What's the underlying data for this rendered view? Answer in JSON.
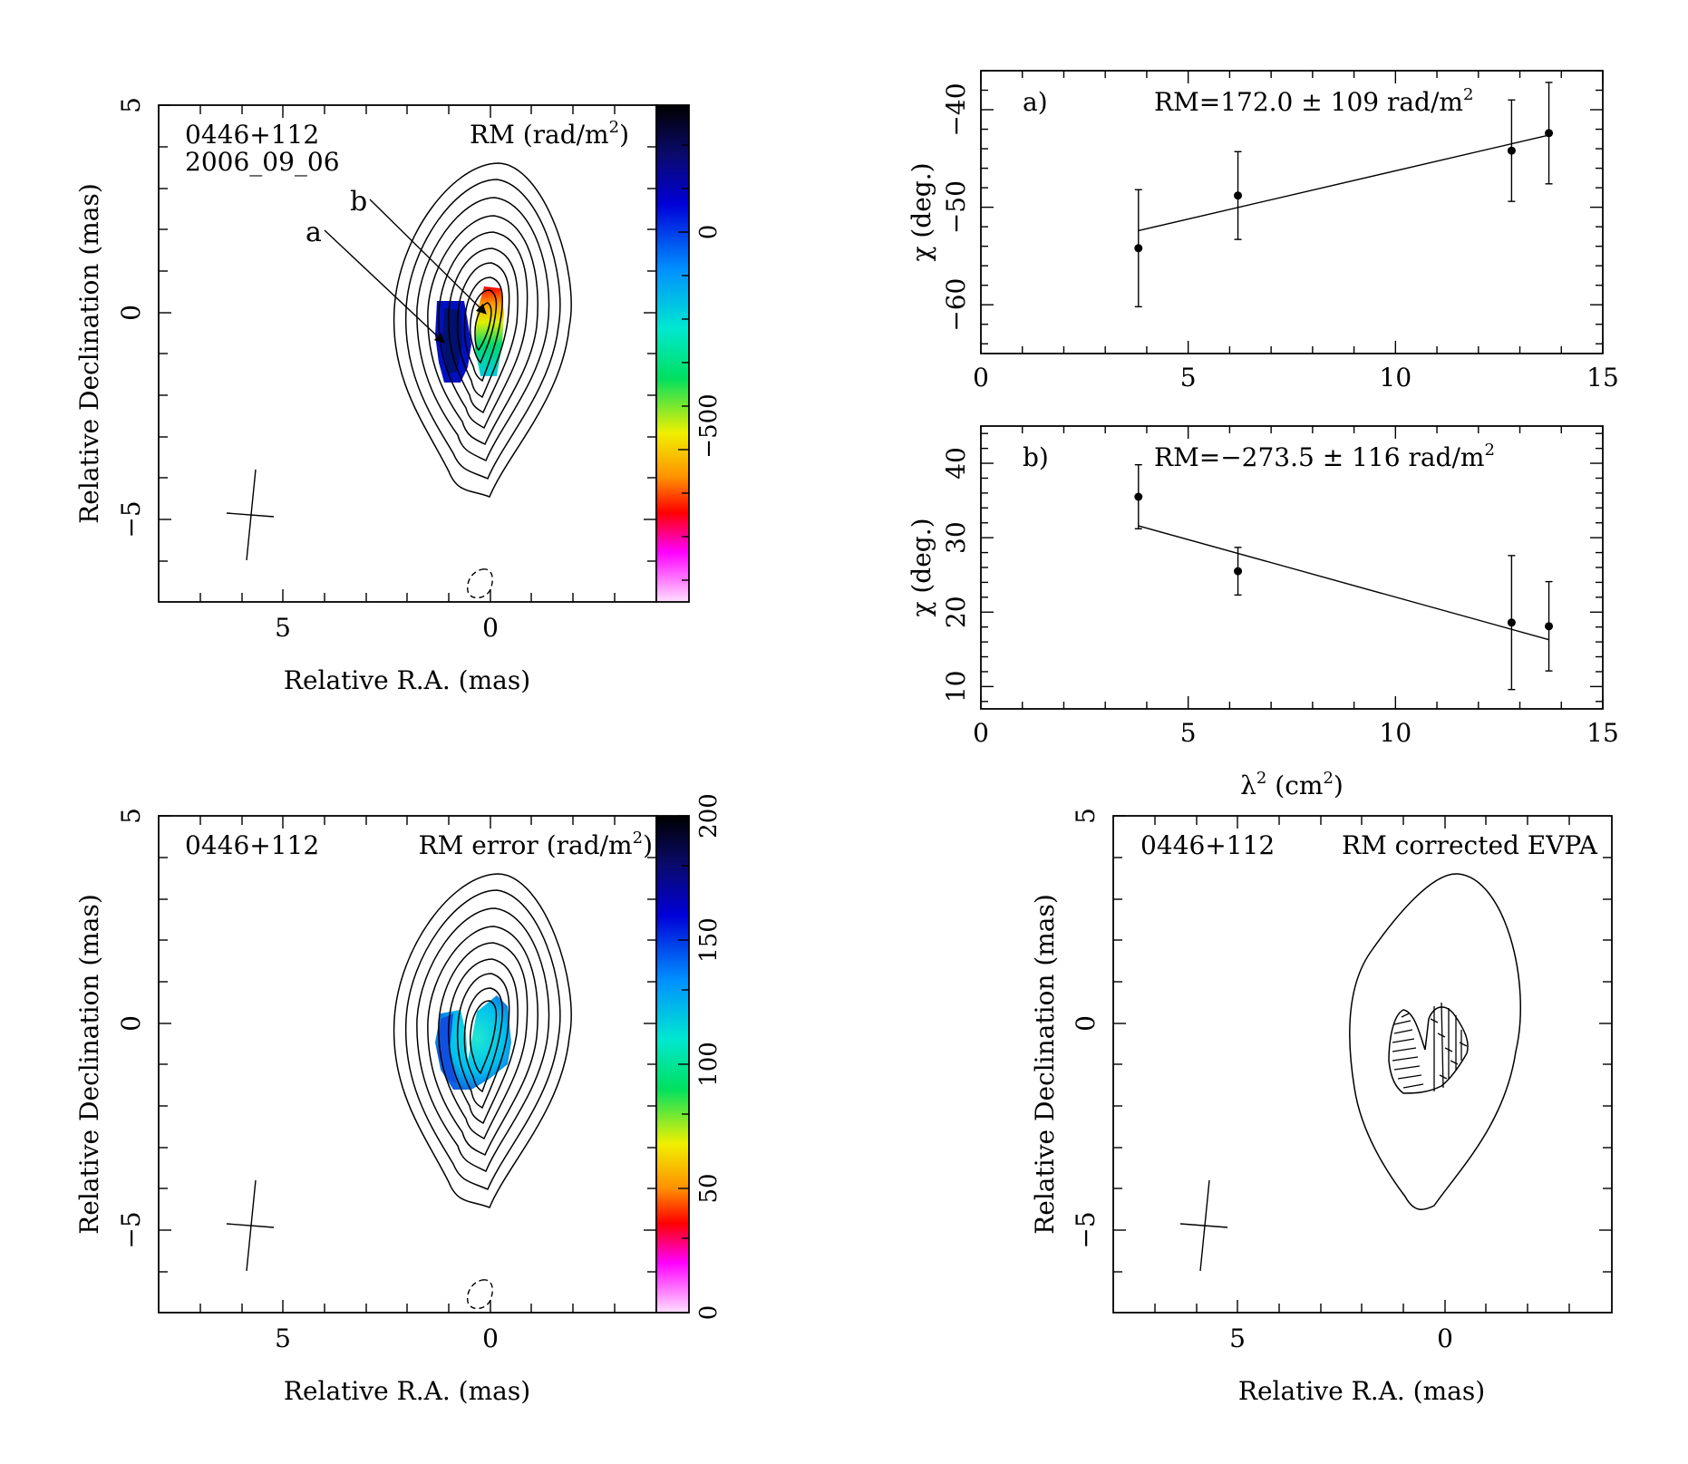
{
  "colors": {
    "background": "#ffffff",
    "ink": "#000000",
    "rm_colormap": [
      "#000000",
      "#0a0a6e",
      "#0000d8",
      "#0090ff",
      "#00e8d0",
      "#00e060",
      "#f0f000",
      "#ff9000",
      "#ff0000",
      "#ff00ff",
      "#ffe0ff"
    ]
  },
  "maps": {
    "rm": {
      "source": "0446+112",
      "epoch": "2006_09_06",
      "label": "RM (rad/m",
      "label_sup": "2",
      "label_close": ")",
      "xlabel": "Relative R.A. (mas)",
      "ylabel": "Relative Declination (mas)",
      "x_ticks": [
        "5",
        "0"
      ],
      "y_ticks": [
        "5",
        "0",
        "−5"
      ],
      "colorbar_ticks": [
        "0",
        "−500"
      ],
      "arrows": [
        "a",
        "b"
      ]
    },
    "rm_error": {
      "source": "0446+112",
      "label": "RM error (rad/m",
      "label_sup": "2",
      "label_close": ")",
      "xlabel": "Relative R.A. (mas)",
      "ylabel": "Relative Declination (mas)",
      "x_ticks": [
        "5",
        "0"
      ],
      "y_ticks": [
        "5",
        "0",
        "−5"
      ],
      "colorbar_ticks": [
        "200",
        "150",
        "100",
        "50",
        "0"
      ]
    },
    "evpa": {
      "source": "0446+112",
      "label": "RM corrected EVPA",
      "xlabel": "Relative R.A. (mas)",
      "ylabel": "Relative Declination (mas)",
      "x_ticks": [
        "5",
        "0"
      ],
      "y_ticks": [
        "5",
        "0",
        "−5"
      ]
    }
  },
  "shared_xlabel": {
    "main": "λ",
    "sup": "2",
    "rest": " (cm",
    "sup2": "2",
    "close": ")"
  },
  "chart_data": [
    {
      "type": "scatter",
      "panel": "a)",
      "annotation": "RM=172.0 ± 109 rad/m",
      "annotation_sup": "2",
      "ylabel": "χ (deg.)",
      "xlim": [
        0,
        15
      ],
      "ylim": [
        -65,
        -36
      ],
      "x_ticks": [
        0,
        5,
        10,
        15
      ],
      "y_ticks": [
        -60,
        -50,
        -40
      ],
      "points": [
        {
          "x": 3.8,
          "y": -54.2,
          "err": 6.0
        },
        {
          "x": 6.2,
          "y": -48.8,
          "err": 4.5
        },
        {
          "x": 12.8,
          "y": -44.2,
          "err": 5.2
        },
        {
          "x": 13.7,
          "y": -42.4,
          "err": 5.2
        }
      ],
      "fit": [
        [
          3.8,
          -52.4
        ],
        [
          13.7,
          -42.6
        ]
      ]
    },
    {
      "type": "scatter",
      "panel": "b)",
      "annotation": "RM=−273.5 ± 116 rad/m",
      "annotation_sup": "2",
      "ylabel": "χ (deg.)",
      "xlim": [
        0,
        15
      ],
      "ylim": [
        7,
        45
      ],
      "x_ticks": [
        0,
        5,
        10,
        15
      ],
      "y_ticks": [
        10,
        20,
        30,
        40
      ],
      "points": [
        {
          "x": 3.8,
          "y": 35.5,
          "err": 4.3
        },
        {
          "x": 6.2,
          "y": 25.5,
          "err": 3.2
        },
        {
          "x": 12.8,
          "y": 18.6,
          "err": 9.0
        },
        {
          "x": 13.7,
          "y": 18.1,
          "err": 6.0
        }
      ],
      "fit": [
        [
          3.8,
          31.6
        ],
        [
          13.7,
          16.3
        ]
      ]
    }
  ]
}
